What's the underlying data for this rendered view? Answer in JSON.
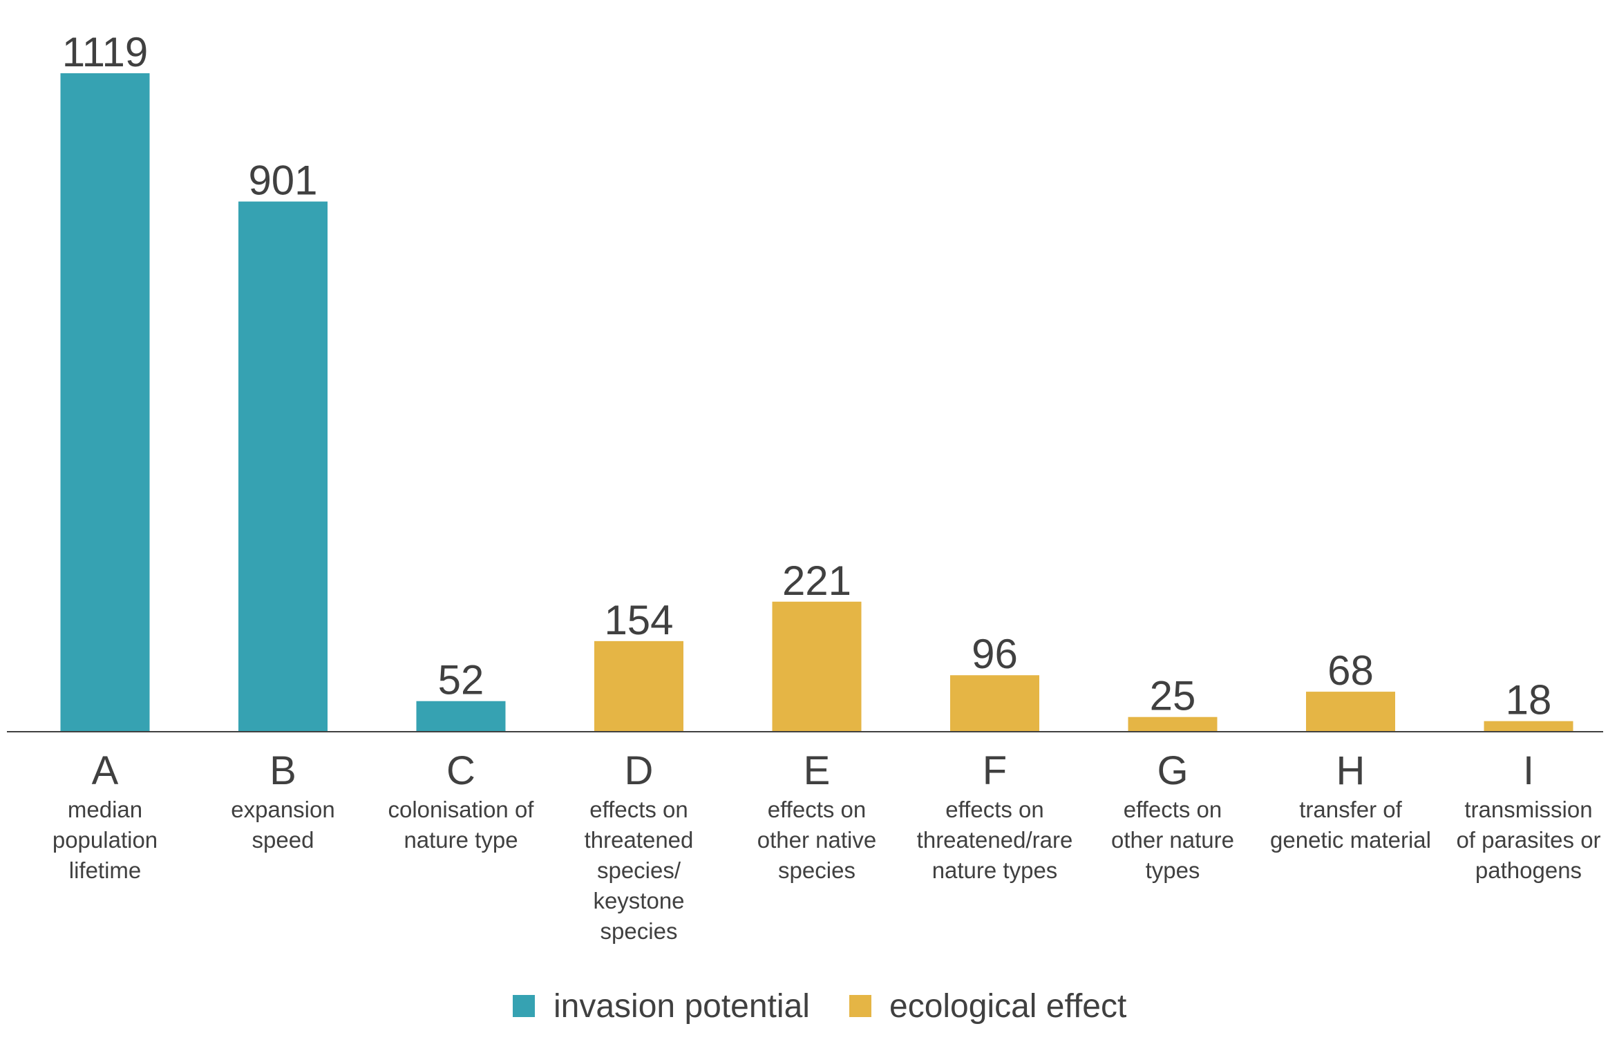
{
  "chart_data": {
    "type": "bar",
    "categories": [
      "A",
      "B",
      "C",
      "D",
      "E",
      "F",
      "G",
      "H",
      "I"
    ],
    "category_descriptions": [
      [
        "median",
        "population",
        "lifetime"
      ],
      [
        "expansion",
        "speed"
      ],
      [
        "colonisation of",
        "nature type"
      ],
      [
        "effects on",
        "threatened",
        "species/",
        "keystone",
        "species"
      ],
      [
        "effects on",
        "other native",
        "species"
      ],
      [
        "effects on",
        "threatened/rare",
        "nature types"
      ],
      [
        "effects on",
        "other nature",
        "types"
      ],
      [
        "transfer of",
        "genetic material"
      ],
      [
        "transmission",
        "of parasites or",
        "pathogens"
      ]
    ],
    "values": [
      1119,
      901,
      52,
      154,
      221,
      96,
      25,
      68,
      18
    ],
    "value_labels": [
      "1119",
      "901",
      "52",
      "154",
      "221",
      "96",
      "25",
      "68",
      "18"
    ],
    "bar_series": [
      0,
      0,
      0,
      1,
      1,
      1,
      1,
      1,
      1
    ],
    "series": [
      {
        "name": "invasion potential",
        "color": "#36a2b2"
      },
      {
        "name": "ecological effect",
        "color": "#e5b545"
      }
    ],
    "title": "",
    "xlabel": "",
    "ylabel": "",
    "ylim": [
      0,
      1119
    ],
    "grid": false,
    "legend_position": "bottom-center"
  }
}
